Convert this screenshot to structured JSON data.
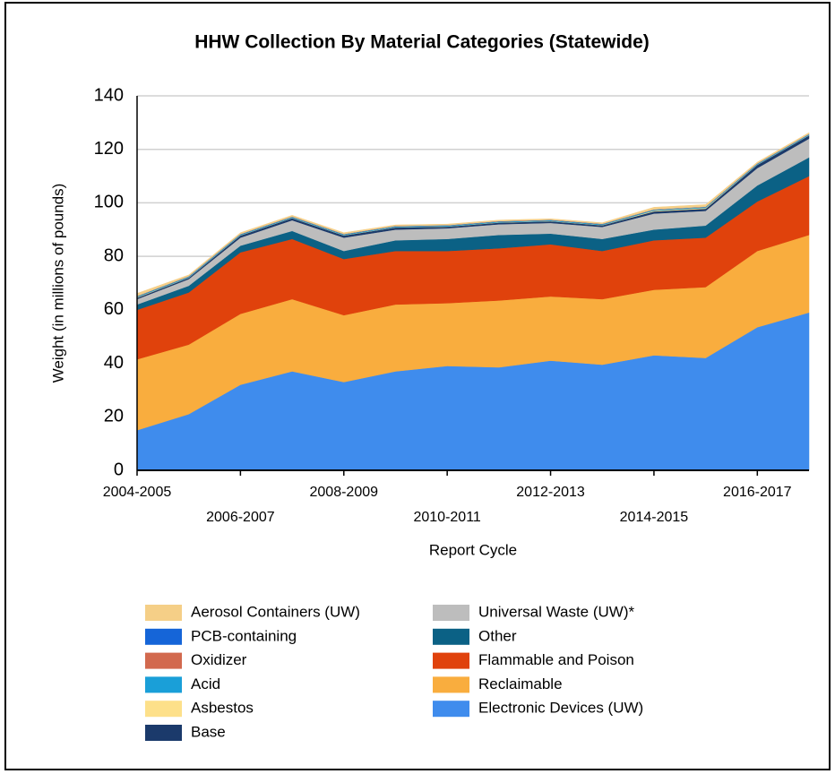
{
  "chart_data": {
    "type": "stacked_area",
    "title": "HHW Collection By Material Categories (Statewide)",
    "x_label": "Report Cycle",
    "y_label": "Weight (in millions of pounds)",
    "categories": [
      "2004-2005",
      null,
      "2006-2007",
      null,
      "2008-2009",
      null,
      "2010-2011",
      null,
      "2012-2013",
      null,
      "2014-2015",
      null,
      "2016-2017",
      null
    ],
    "ylim": [
      0,
      140
    ],
    "yticks": [
      0,
      20,
      40,
      60,
      80,
      100,
      120,
      140
    ],
    "grid": true,
    "series": [
      {
        "name": "Aerosol Containers (UW)",
        "color": "#f5cf87",
        "values": [
          1,
          0.5,
          0.5,
          0.5,
          0.5,
          0.4,
          0.4,
          0.4,
          0.4,
          0.4,
          0.8,
          0.8,
          0.5,
          0.5
        ]
      },
      {
        "name": "PCB-containing",
        "color": "#1565d8",
        "values": [
          0.05,
          0.05,
          0.05,
          0.05,
          0.05,
          0.05,
          0.05,
          0.05,
          0.05,
          0.05,
          0.05,
          0.05,
          0.05,
          0.05
        ]
      },
      {
        "name": "Oxidizer",
        "color": "#d2694e",
        "values": [
          0.1,
          0.1,
          0.1,
          0.1,
          0.1,
          0.1,
          0.1,
          0.1,
          0.1,
          0.1,
          0.1,
          0.1,
          0.1,
          0.1
        ]
      },
      {
        "name": "Acid",
        "color": "#1a9fd8",
        "values": [
          0.3,
          0.3,
          0.3,
          0.3,
          0.3,
          0.3,
          0.3,
          0.3,
          0.3,
          0.3,
          0.3,
          0.3,
          0.3,
          0.3
        ]
      },
      {
        "name": "Asbestos",
        "color": "#fde08a",
        "values": [
          0.2,
          0.1,
          0.1,
          0.1,
          0.1,
          0.1,
          0.1,
          0.1,
          0.1,
          0.1,
          0.3,
          0.3,
          0.1,
          0.1
        ]
      },
      {
        "name": "Base",
        "color": "#1b3a6b",
        "values": [
          0.5,
          0.5,
          0.8,
          0.8,
          0.8,
          0.8,
          0.6,
          0.6,
          0.6,
          0.6,
          0.8,
          0.8,
          1.2,
          1.2
        ]
      },
      {
        "name": "Universal Waste (UW)*",
        "color": "#bdbdbd",
        "values": [
          2,
          2.5,
          3,
          4,
          5,
          4,
          4,
          4,
          4,
          4.5,
          6,
          5.5,
          6.5,
          7
        ]
      },
      {
        "name": "Other",
        "color": "#0b6185",
        "values": [
          2,
          2.5,
          2.5,
          3,
          3,
          4,
          4.5,
          5,
          4,
          4.5,
          4,
          4.5,
          6,
          7
        ]
      },
      {
        "name": "Flammable and Poison",
        "color": "#e0420c",
        "values": [
          18.5,
          19.5,
          23,
          22.5,
          21,
          20,
          19.5,
          19.5,
          19.5,
          18,
          18.5,
          18.5,
          18.5,
          22
        ]
      },
      {
        "name": "Reclaimable",
        "color": "#f9ad3e",
        "values": [
          26.5,
          26,
          26.5,
          27,
          25,
          25,
          23.5,
          25,
          24,
          24.5,
          24.5,
          26.5,
          28.5,
          29
        ]
      },
      {
        "name": "Electronic Devices (UW)",
        "color": "#3f8ced",
        "values": [
          15,
          21,
          32,
          37,
          33,
          37,
          39,
          38.5,
          41,
          39.5,
          43,
          42,
          53.5,
          59
        ]
      }
    ]
  }
}
